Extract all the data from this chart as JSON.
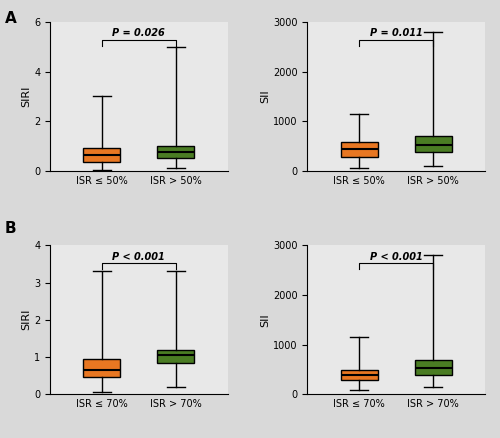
{
  "background_color": "#e8e8e8",
  "fig_facecolor": "#d9d9d9",
  "orange_color": "#E87722",
  "green_color": "#4a7c23",
  "panels": [
    {
      "label": "A",
      "subplot_idx": 0,
      "ylabel": "SIRI",
      "ylim": [
        0,
        6
      ],
      "yticks": [
        0,
        2,
        4,
        6
      ],
      "xlabels": [
        "ISR ≤ 50%",
        "ISR > 50%"
      ],
      "p_text": "P = 0.026",
      "boxes": [
        {
          "color": "orange",
          "whislo": 0.03,
          "q1": 0.35,
          "med": 0.65,
          "q3": 0.9,
          "whishi": 3.0
        },
        {
          "color": "green",
          "whislo": 0.1,
          "q1": 0.5,
          "med": 0.75,
          "q3": 1.0,
          "whishi": 5.0
        }
      ]
    },
    {
      "label": "A",
      "subplot_idx": 1,
      "ylabel": "SII",
      "ylim": [
        0,
        3000
      ],
      "yticks": [
        0,
        1000,
        2000,
        3000
      ],
      "xlabels": [
        "ISR ≤ 50%",
        "ISR > 50%"
      ],
      "p_text": "P = 0.011",
      "boxes": [
        {
          "color": "orange",
          "whislo": 50,
          "q1": 280,
          "med": 430,
          "q3": 580,
          "whishi": 1150
        },
        {
          "color": "green",
          "whislo": 100,
          "q1": 380,
          "med": 530,
          "q3": 700,
          "whishi": 2800
        }
      ]
    },
    {
      "label": "B",
      "subplot_idx": 2,
      "ylabel": "SIRI",
      "ylim": [
        0,
        4
      ],
      "yticks": [
        0,
        1,
        2,
        3,
        4
      ],
      "xlabels": [
        "ISR ≤ 70%",
        "ISR > 70%"
      ],
      "p_text": "P < 0.001",
      "boxes": [
        {
          "color": "orange",
          "whislo": 0.05,
          "q1": 0.45,
          "med": 0.65,
          "q3": 0.95,
          "whishi": 3.3
        },
        {
          "color": "green",
          "whislo": 0.2,
          "q1": 0.85,
          "med": 1.05,
          "q3": 1.2,
          "whishi": 3.3
        }
      ]
    },
    {
      "label": "B",
      "subplot_idx": 3,
      "ylabel": "SII",
      "ylim": [
        0,
        3000
      ],
      "yticks": [
        0,
        1000,
        2000,
        3000
      ],
      "xlabels": [
        "ISR ≤ 70%",
        "ISR > 70%"
      ],
      "p_text": "P < 0.001",
      "boxes": [
        {
          "color": "orange",
          "whislo": 80,
          "q1": 280,
          "med": 380,
          "q3": 490,
          "whishi": 1150
        },
        {
          "color": "green",
          "whislo": 150,
          "q1": 380,
          "med": 530,
          "q3": 680,
          "whishi": 2800
        }
      ]
    }
  ]
}
